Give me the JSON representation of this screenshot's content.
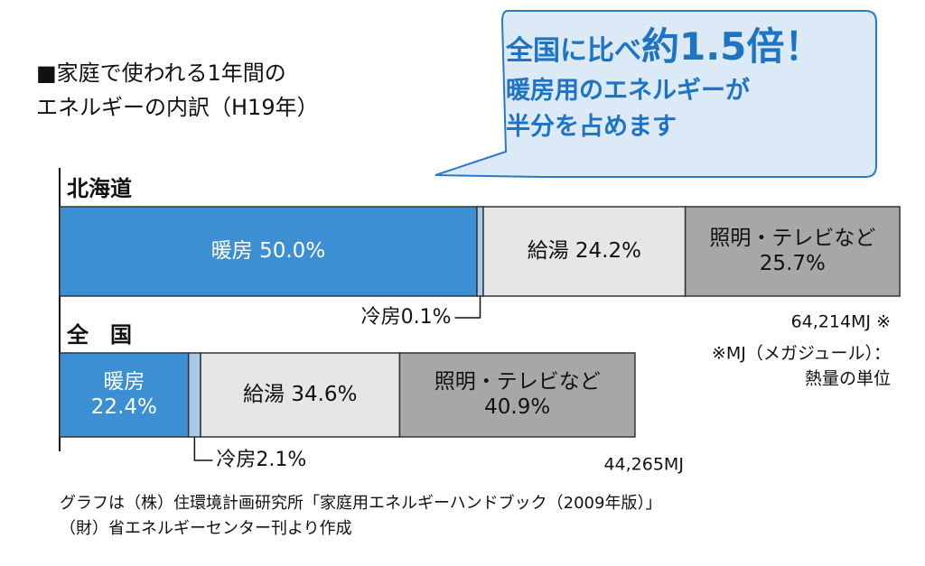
{
  "title": {
    "line1": "■家庭で使われる1年間の",
    "line2": "エネルギーの内訳（H19年）"
  },
  "callout": {
    "line1_prefix": "全国に比べ",
    "line1_emph": "約1.5倍！",
    "line2": "暖房用のエネルギーが",
    "line3": "半分を占めます"
  },
  "chart_data": {
    "type": "bar",
    "orientation": "horizontal-stacked-100",
    "unit": "%",
    "series": [
      {
        "name": "北海道",
        "total_label": "64,214MJ ※",
        "segments": [
          {
            "name": "暖房",
            "value": 50.0,
            "label_lines": [
              "暖房 50.0%"
            ],
            "color": "#3d8fd4",
            "text_color": "#ffffff"
          },
          {
            "name": "冷房",
            "value": 0.1,
            "label_lines": [
              "冷房0.1%"
            ],
            "color": "#a9c9ea",
            "text_color": "#111111",
            "external": true
          },
          {
            "name": "給湯",
            "value": 24.2,
            "label_lines": [
              "給湯 24.2%"
            ],
            "color": "#e6e6e6",
            "text_color": "#111111"
          },
          {
            "name": "照明・テレビなど",
            "value": 25.7,
            "label_lines": [
              "照明・テレビなど",
              "25.7%"
            ],
            "color": "#a7a7a7",
            "text_color": "#111111"
          }
        ]
      },
      {
        "name": "全　国",
        "total_label": "44,265MJ",
        "segments": [
          {
            "name": "暖房",
            "value": 22.4,
            "label_lines": [
              "暖房",
              "22.4%"
            ],
            "color": "#3d8fd4",
            "text_color": "#ffffff"
          },
          {
            "name": "冷房",
            "value": 2.1,
            "label_lines": [
              "冷房2.1%"
            ],
            "color": "#a9c9ea",
            "text_color": "#111111",
            "external": true
          },
          {
            "name": "給湯",
            "value": 34.6,
            "label_lines": [
              "給湯 34.6%"
            ],
            "color": "#e6e6e6",
            "text_color": "#111111"
          },
          {
            "name": "照明・テレビなど",
            "value": 40.9,
            "label_lines": [
              "照明・テレビなど",
              "40.9%"
            ],
            "color": "#a7a7a7",
            "text_color": "#111111"
          }
        ]
      }
    ],
    "relative_scale": {
      "北海道": 64214,
      "全国": 44265
    },
    "note_lines": [
      "※MJ（メガジュール）：",
      "熱量の単位"
    ]
  },
  "footnote": {
    "line1": "グラフは（株）住環境計画研究所「家庭用エネルギーハンドブック（2009年版）」",
    "line2": "（財）省エネルギーセンター刊より作成"
  },
  "colors": {
    "accent": "#1d73c4",
    "bubble_fill": "#dce9f6",
    "bubble_stroke": "#2a79c8"
  }
}
